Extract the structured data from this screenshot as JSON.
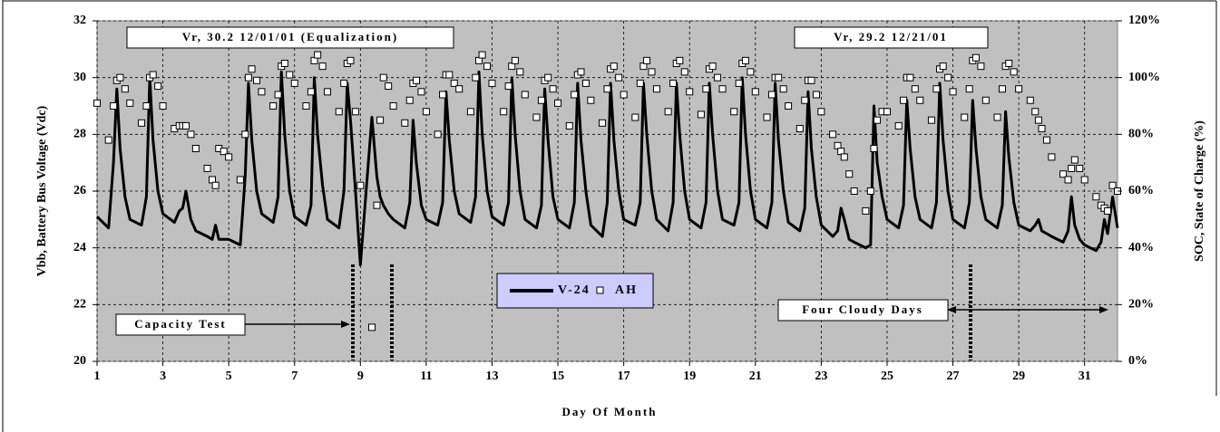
{
  "chart_data": {
    "type": "line",
    "xlabel": "Day Of Month",
    "ylabel": "Vbb, Battery Bus Voltage (Vdc)",
    "y2label": "SOC, State of Charge (%)",
    "annotations": [
      "Vr, 30.2 12/01/01 (Equalization)",
      "Vr, 29.2 12/21/01",
      "Capacity Test",
      "Four Cloudy Days"
    ],
    "xlim": [
      1,
      32
    ],
    "xticks": [
      1,
      3,
      5,
      7,
      9,
      11,
      13,
      15,
      17,
      19,
      21,
      23,
      25,
      27,
      29,
      31
    ],
    "ylim": [
      20,
      32
    ],
    "yticks": [
      20,
      22,
      24,
      26,
      28,
      30,
      32
    ],
    "y2lim": [
      0,
      120
    ],
    "y2ticks": [
      {
        "value": 0,
        "label": "0%"
      },
      {
        "value": 20,
        "label": "20%"
      },
      {
        "value": 40,
        "label": "40%"
      },
      {
        "value": 60,
        "label": "60%"
      },
      {
        "value": 80,
        "label": "80%"
      },
      {
        "value": 100,
        "label": "100%"
      },
      {
        "value": 120,
        "label": "120%"
      }
    ],
    "grid": true,
    "legend": "bottom",
    "x": [
      1,
      1.35,
      1.5,
      1.6,
      1.7,
      1.85,
      2,
      2.35,
      2.5,
      2.6,
      2.7,
      2.85,
      3,
      3.35,
      3.5,
      3.6,
      3.7,
      3.85,
      4,
      4.35,
      4.5,
      4.6,
      4.7,
      4.85,
      5,
      5.35,
      5.5,
      5.6,
      5.7,
      5.85,
      6,
      6.35,
      6.5,
      6.6,
      6.7,
      6.85,
      7,
      7.35,
      7.5,
      7.6,
      7.7,
      7.85,
      8,
      8.35,
      8.5,
      8.6,
      8.7,
      8.85,
      9,
      9.35,
      9.5,
      9.6,
      9.7,
      9.85,
      10,
      10.35,
      10.5,
      10.6,
      10.7,
      10.85,
      11,
      11.35,
      11.5,
      11.6,
      11.7,
      11.85,
      12,
      12.35,
      12.5,
      12.6,
      12.7,
      12.85,
      13,
      13.35,
      13.5,
      13.6,
      13.7,
      13.85,
      14,
      14.35,
      14.5,
      14.6,
      14.7,
      14.85,
      15,
      15.35,
      15.5,
      15.6,
      15.7,
      15.85,
      16,
      16.35,
      16.5,
      16.6,
      16.7,
      16.85,
      17,
      17.35,
      17.5,
      17.6,
      17.7,
      17.85,
      18,
      18.35,
      18.5,
      18.6,
      18.7,
      18.85,
      19,
      19.35,
      19.5,
      19.6,
      19.7,
      19.85,
      20,
      20.35,
      20.5,
      20.6,
      20.7,
      20.85,
      21,
      21.35,
      21.5,
      21.6,
      21.7,
      21.85,
      22,
      22.35,
      22.5,
      22.6,
      22.7,
      22.85,
      23,
      23.35,
      23.5,
      23.6,
      23.7,
      23.85,
      24,
      24.35,
      24.5,
      24.6,
      24.7,
      24.85,
      25,
      25.35,
      25.5,
      25.6,
      25.7,
      25.85,
      26,
      26.35,
      26.5,
      26.6,
      26.7,
      26.85,
      27,
      27.35,
      27.5,
      27.6,
      27.7,
      27.85,
      28,
      28.35,
      28.5,
      28.6,
      28.7,
      28.85,
      29,
      29.35,
      29.5,
      29.6,
      29.7,
      29.85,
      30,
      30.35,
      30.5,
      30.6,
      30.7,
      30.85,
      31,
      31.35,
      31.5,
      31.6,
      31.7,
      31.85,
      32
    ],
    "series": [
      {
        "name": "V-24",
        "color": "#000000",
        "style": "line",
        "values": [
          25.1,
          24.7,
          27.0,
          29.6,
          27.5,
          25.8,
          25.0,
          24.8,
          25.8,
          30.0,
          27.8,
          26.0,
          25.2,
          24.9,
          25.3,
          25.4,
          26.0,
          25.0,
          24.6,
          24.4,
          24.3,
          24.8,
          24.3,
          24.3,
          24.3,
          24.1,
          26.5,
          29.8,
          27.8,
          26.0,
          25.2,
          24.9,
          25.8,
          30.2,
          28.0,
          26.0,
          25.1,
          24.8,
          25.5,
          30.0,
          28.0,
          26.2,
          25.0,
          24.7,
          26.0,
          29.8,
          28.5,
          26.0,
          23.4,
          28.6,
          26.5,
          25.8,
          25.5,
          25.2,
          25.0,
          24.7,
          25.6,
          28.5,
          27.0,
          25.5,
          25.0,
          24.8,
          25.6,
          29.5,
          27.8,
          26.0,
          25.2,
          24.9,
          25.8,
          30.2,
          28.0,
          26.0,
          25.1,
          24.8,
          25.6,
          30.0,
          28.0,
          26.0,
          25.0,
          24.7,
          25.5,
          29.6,
          27.8,
          25.8,
          25.0,
          24.7,
          25.6,
          29.8,
          27.8,
          26.0,
          24.8,
          24.4,
          25.6,
          29.8,
          27.8,
          26.0,
          25.0,
          24.8,
          25.6,
          29.8,
          28.0,
          26.0,
          25.0,
          24.6,
          25.6,
          29.8,
          28.0,
          26.0,
          25.0,
          24.7,
          25.6,
          29.8,
          28.0,
          26.0,
          25.0,
          24.8,
          25.6,
          30.0,
          28.0,
          26.0,
          25.0,
          24.7,
          25.6,
          29.8,
          27.8,
          26.0,
          24.9,
          24.6,
          25.4,
          29.5,
          27.5,
          25.8,
          24.8,
          24.4,
          24.6,
          25.4,
          25.0,
          24.3,
          24.2,
          24.0,
          24.1,
          29.0,
          27.0,
          25.8,
          25.0,
          24.7,
          25.5,
          29.2,
          27.5,
          25.8,
          25.0,
          24.7,
          25.6,
          29.8,
          27.8,
          26.0,
          25.0,
          24.7,
          25.6,
          29.2,
          27.5,
          25.8,
          25.0,
          24.7,
          25.5,
          28.8,
          27.2,
          25.6,
          24.8,
          24.6,
          24.8,
          25.0,
          24.6,
          24.5,
          24.4,
          24.2,
          24.6,
          25.8,
          24.8,
          24.3,
          24.1,
          23.9,
          24.2,
          25.0,
          24.5,
          25.8,
          24.7
        ]
      },
      {
        "name": "AH",
        "color": "#ffffff",
        "style": "marker",
        "axis": "y2",
        "values": [
          91,
          78,
          90,
          99,
          100,
          96,
          91,
          84,
          90,
          100,
          101,
          97,
          90,
          82,
          83,
          83,
          83,
          80,
          75,
          68,
          64,
          62,
          75,
          74,
          72,
          64,
          80,
          100,
          103,
          99,
          95,
          90,
          94,
          104,
          105,
          101,
          98,
          90,
          95,
          106,
          108,
          104,
          95,
          88,
          98,
          105,
          106,
          88,
          62,
          12,
          55,
          85,
          100,
          97,
          90,
          84,
          92,
          98,
          99,
          95,
          88,
          80,
          94,
          101,
          101,
          98,
          96,
          88,
          100,
          106,
          108,
          104,
          98,
          88,
          97,
          104,
          106,
          102,
          94,
          86,
          92,
          99,
          100,
          96,
          91,
          83,
          94,
          101,
          102,
          98,
          92,
          84,
          96,
          103,
          104,
          100,
          94,
          86,
          98,
          104,
          106,
          102,
          96,
          88,
          98,
          105,
          106,
          102,
          95,
          87,
          96,
          103,
          104,
          100,
          96,
          88,
          98,
          105,
          106,
          102,
          95,
          86,
          94,
          100,
          100,
          96,
          90,
          82,
          92,
          99,
          99,
          94,
          88,
          80,
          76,
          74,
          72,
          66,
          60,
          53,
          60,
          75,
          85,
          88,
          88,
          83,
          92,
          100,
          100,
          96,
          92,
          85,
          96,
          103,
          104,
          100,
          95,
          86,
          96,
          106,
          107,
          104,
          92,
          86,
          96,
          104,
          105,
          102,
          96,
          92,
          88,
          85,
          82,
          78,
          72,
          66,
          64,
          68,
          71,
          68,
          64,
          58,
          55,
          54,
          53,
          62,
          60
        ]
      }
    ]
  }
}
